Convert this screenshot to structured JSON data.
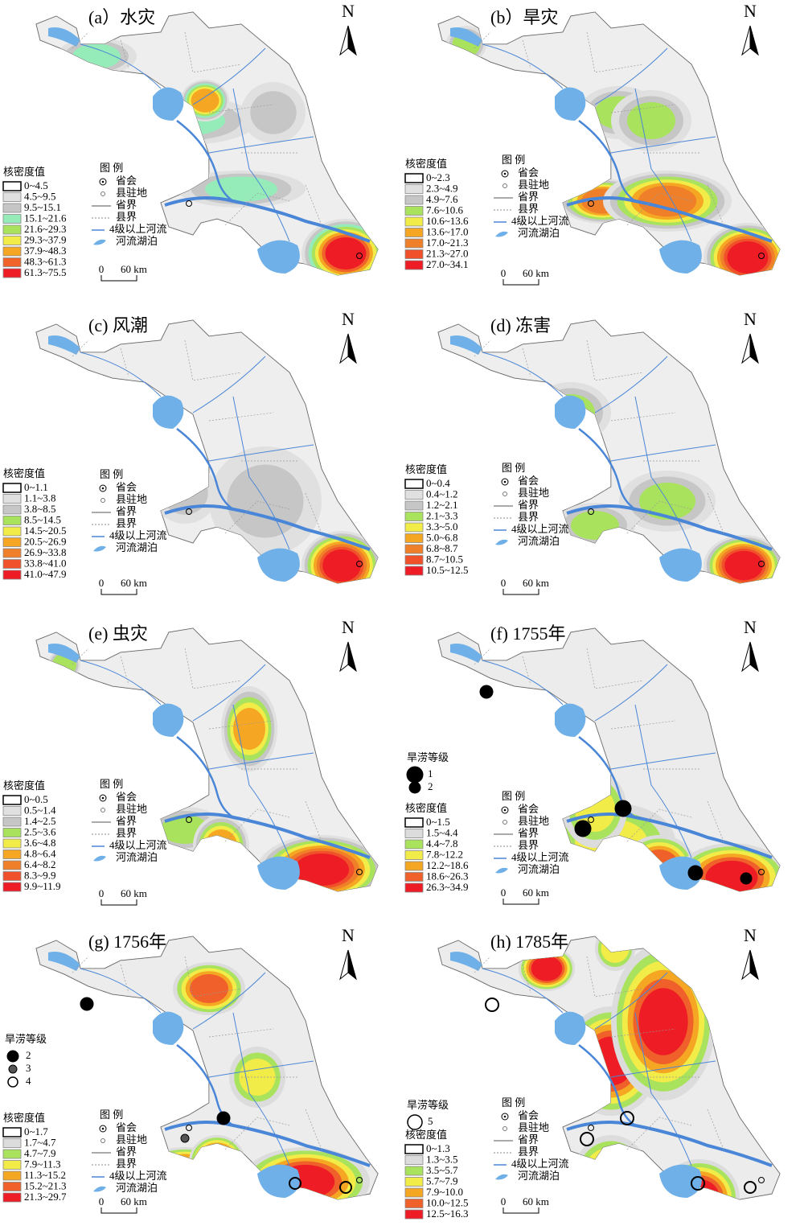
{
  "north_label": "N",
  "legend_title": "图 例",
  "legend_items": [
    "省会",
    "县驻地",
    "省界",
    "县界",
    "4级以上河流",
    "河流湖泊"
  ],
  "density_title": "核密度值",
  "flood_level_title": "旱涝等级",
  "scale_bar": [
    "0",
    "60 km"
  ],
  "panels": [
    {
      "title": "(a）水灾",
      "density_classes": [
        "0~4.5",
        "4.5~9.5",
        "9.5~15.1",
        "15.1~21.6",
        "21.6~29.3",
        "29.3~37.9",
        "37.9~48.3",
        "48.3~61.3",
        "61.3~75.5"
      ],
      "colors": [
        "#ffffff",
        "#e0e0e0",
        "#c6c6c6",
        "#96ecb9",
        "#a9e25d",
        "#f2ec48",
        "#f5a623",
        "#f0642a",
        "#ee1c24"
      ]
    },
    {
      "title": "(b）旱灾",
      "density_classes": [
        "0~2.3",
        "2.3~4.9",
        "4.9~7.6",
        "7.6~10.6",
        "10.6~13.6",
        "13.6~17.0",
        "17.0~21.3",
        "21.3~27.0",
        "27.0~34.1"
      ],
      "colors": [
        "#ffffff",
        "#e0e0e0",
        "#c6c6c6",
        "#a9e25d",
        "#f2ec48",
        "#f5a623",
        "#f07f2a",
        "#f0502a",
        "#ee1c24"
      ]
    },
    {
      "title": "(c) 风潮",
      "density_classes": [
        "0~1.1",
        "1.1~3.8",
        "3.8~8.5",
        "8.5~14.5",
        "14.5~20.5",
        "20.5~26.9",
        "26.9~33.8",
        "33.8~41.0",
        "41.0~47.9"
      ],
      "colors": [
        "#ffffff",
        "#e0e0e0",
        "#c6c6c6",
        "#a9e25d",
        "#f2ec48",
        "#f5a623",
        "#f07f2a",
        "#f0502a",
        "#ee1c24"
      ]
    },
    {
      "title": "(d) 冻害",
      "density_classes": [
        "0~0.4",
        "0.4~1.2",
        "1.2~2.1",
        "2.1~3.3",
        "3.3~5.0",
        "5.0~6.8",
        "6.8~8.7",
        "8.7~10.5",
        "10.5~12.5"
      ],
      "colors": [
        "#ffffff",
        "#e0e0e0",
        "#c6c6c6",
        "#a9e25d",
        "#f2ec48",
        "#f5a623",
        "#f07f2a",
        "#f0502a",
        "#ee1c24"
      ]
    },
    {
      "title": "(e) 虫灾",
      "density_classes": [
        "0~0.5",
        "0.5~1.4",
        "1.4~2.5",
        "2.5~3.6",
        "3.6~4.8",
        "4.8~6.4",
        "6.4~8.2",
        "8.3~9.9",
        "9.9~11.9"
      ],
      "colors": [
        "#ffffff",
        "#e0e0e0",
        "#c6c6c6",
        "#a9e25d",
        "#f2ec48",
        "#f5a623",
        "#f07f2a",
        "#f0502a",
        "#ee1c24"
      ]
    },
    {
      "title": "(f) 1755年",
      "flood_levels": [
        1,
        2
      ],
      "density_classes": [
        "0~1.5",
        "1.5~4.4",
        "4.4~7.8",
        "7.8~12.2",
        "12.2~18.6",
        "18.6~26.3",
        "26.3~34.9"
      ],
      "colors": [
        "#ffffff",
        "#dcdcdc",
        "#a9e25d",
        "#f2ec48",
        "#f5a623",
        "#f0602a",
        "#ee1c24"
      ]
    },
    {
      "title": "(g) 1756年",
      "flood_levels": [
        2,
        3,
        4
      ],
      "density_classes": [
        "0~1.7",
        "1.7~4.7",
        "4.7~7.9",
        "7.9~11.3",
        "11.3~15.2",
        "15.2~21.3",
        "21.3~29.7"
      ],
      "colors": [
        "#ffffff",
        "#dcdcdc",
        "#a9e25d",
        "#f2ec48",
        "#f5a623",
        "#f0602a",
        "#ee1c24"
      ]
    },
    {
      "title": "(h) 1785年",
      "flood_levels": [
        5
      ],
      "density_classes": [
        "0~1.3",
        "1.3~3.5",
        "3.5~5.7",
        "5.7~7.9",
        "7.9~10.0",
        "10.0~12.5",
        "12.5~16.3"
      ],
      "colors": [
        "#ffffff",
        "#dcdcdc",
        "#a9e25d",
        "#f2ec48",
        "#f5a623",
        "#f0602a",
        "#ee1c24"
      ]
    }
  ]
}
